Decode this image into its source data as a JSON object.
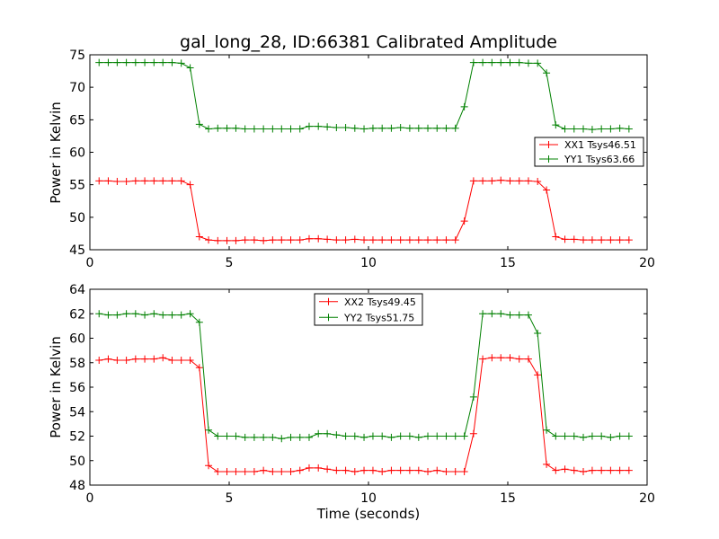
{
  "chart_data": [
    {
      "type": "line",
      "title": "gal_long_28, ID:66381 Calibrated Amplitude",
      "xlabel": "",
      "ylabel": "Power in Kelvin",
      "xlim": [
        0,
        20
      ],
      "ylim": [
        45,
        75
      ],
      "xticks": [
        "0",
        "5",
        "10",
        "15",
        "20"
      ],
      "yticks": [
        "45",
        "50",
        "55",
        "60",
        "65",
        "70",
        "75"
      ],
      "legend_position": "center-right",
      "grid": false,
      "x": [
        0.33,
        0.66,
        0.98,
        1.31,
        1.64,
        1.97,
        2.3,
        2.62,
        2.95,
        3.28,
        3.6,
        3.93,
        4.26,
        4.59,
        4.92,
        5.24,
        5.57,
        5.9,
        6.23,
        6.56,
        6.88,
        7.21,
        7.54,
        7.87,
        8.2,
        8.52,
        8.85,
        9.18,
        9.51,
        9.84,
        10.16,
        10.49,
        10.82,
        11.15,
        11.48,
        11.8,
        12.13,
        12.46,
        12.79,
        13.12,
        13.44,
        13.77,
        14.1,
        14.43,
        14.75,
        15.08,
        15.41,
        15.74,
        16.07,
        16.39,
        16.72,
        17.05,
        17.38,
        17.71,
        18.03,
        18.36,
        18.69,
        19.02,
        19.35
      ],
      "series": [
        {
          "name": "XX1 Tsys46.51",
          "color": "#ff0000",
          "values": [
            55.6,
            55.6,
            55.5,
            55.5,
            55.6,
            55.6,
            55.6,
            55.6,
            55.6,
            55.6,
            55.0,
            47.0,
            46.5,
            46.4,
            46.4,
            46.4,
            46.5,
            46.5,
            46.4,
            46.5,
            46.5,
            46.5,
            46.5,
            46.7,
            46.7,
            46.6,
            46.5,
            46.5,
            46.6,
            46.5,
            46.5,
            46.5,
            46.5,
            46.5,
            46.5,
            46.5,
            46.5,
            46.5,
            46.5,
            46.5,
            49.4,
            55.6,
            55.6,
            55.6,
            55.7,
            55.6,
            55.6,
            55.6,
            55.5,
            54.2,
            47.0,
            46.6,
            46.6,
            46.5,
            46.5,
            46.5,
            46.5,
            46.5,
            46.5
          ]
        },
        {
          "name": "YY1 Tsys63.66",
          "color": "#008000",
          "values": [
            73.8,
            73.8,
            73.8,
            73.8,
            73.8,
            73.8,
            73.8,
            73.8,
            73.8,
            73.7,
            73.0,
            64.3,
            63.6,
            63.7,
            63.7,
            63.7,
            63.6,
            63.6,
            63.6,
            63.6,
            63.6,
            63.6,
            63.6,
            64.0,
            64.0,
            63.9,
            63.8,
            63.8,
            63.7,
            63.6,
            63.7,
            63.7,
            63.7,
            63.8,
            63.7,
            63.7,
            63.7,
            63.7,
            63.7,
            63.7,
            67.0,
            73.8,
            73.8,
            73.8,
            73.8,
            73.8,
            73.8,
            73.7,
            73.7,
            72.2,
            64.2,
            63.6,
            63.6,
            63.6,
            63.5,
            63.6,
            63.6,
            63.7,
            63.6
          ]
        }
      ]
    },
    {
      "type": "line",
      "title": "",
      "xlabel": "Time (seconds)",
      "ylabel": "Power in Kelvin",
      "xlim": [
        0,
        20
      ],
      "ylim": [
        48,
        64
      ],
      "xticks": [
        "0",
        "5",
        "10",
        "15",
        "20"
      ],
      "yticks": [
        "48",
        "50",
        "52",
        "54",
        "56",
        "58",
        "60",
        "62",
        "64"
      ],
      "legend_position": "upper-center",
      "grid": false,
      "x": [
        0.33,
        0.66,
        0.98,
        1.31,
        1.64,
        1.97,
        2.3,
        2.62,
        2.95,
        3.28,
        3.6,
        3.93,
        4.26,
        4.59,
        4.92,
        5.24,
        5.57,
        5.9,
        6.23,
        6.56,
        6.88,
        7.21,
        7.54,
        7.87,
        8.2,
        8.52,
        8.85,
        9.18,
        9.51,
        9.84,
        10.16,
        10.49,
        10.82,
        11.15,
        11.48,
        11.8,
        12.13,
        12.46,
        12.79,
        13.12,
        13.44,
        13.77,
        14.1,
        14.43,
        14.75,
        15.08,
        15.41,
        15.74,
        16.07,
        16.39,
        16.72,
        17.05,
        17.38,
        17.71,
        18.03,
        18.36,
        18.69,
        19.02,
        19.35
      ],
      "series": [
        {
          "name": "XX2 Tsys49.45",
          "color": "#ff0000",
          "values": [
            58.2,
            58.3,
            58.2,
            58.2,
            58.3,
            58.3,
            58.3,
            58.4,
            58.2,
            58.2,
            58.2,
            57.6,
            49.6,
            49.1,
            49.1,
            49.1,
            49.1,
            49.1,
            49.2,
            49.1,
            49.1,
            49.1,
            49.2,
            49.4,
            49.4,
            49.3,
            49.2,
            49.2,
            49.1,
            49.2,
            49.2,
            49.1,
            49.2,
            49.2,
            49.2,
            49.2,
            49.1,
            49.2,
            49.1,
            49.1,
            49.1,
            52.2,
            58.3,
            58.4,
            58.4,
            58.4,
            58.3,
            58.3,
            57.0,
            49.7,
            49.2,
            49.3,
            49.2,
            49.1,
            49.2,
            49.2,
            49.2,
            49.2,
            49.2
          ]
        },
        {
          "name": "YY2 Tsys51.75",
          "color": "#008000",
          "values": [
            62.0,
            61.9,
            61.9,
            62.0,
            62.0,
            61.9,
            62.0,
            61.9,
            61.9,
            61.9,
            62.0,
            61.3,
            52.5,
            52.0,
            52.0,
            52.0,
            51.9,
            51.9,
            51.9,
            51.9,
            51.8,
            51.9,
            51.9,
            51.9,
            52.2,
            52.2,
            52.1,
            52.0,
            52.0,
            51.9,
            52.0,
            52.0,
            51.9,
            52.0,
            52.0,
            51.9,
            52.0,
            52.0,
            52.0,
            52.0,
            52.0,
            55.2,
            62.0,
            62.0,
            62.0,
            61.9,
            61.9,
            61.9,
            60.4,
            52.5,
            52.0,
            52.0,
            52.0,
            51.9,
            52.0,
            52.0,
            51.9,
            52.0,
            52.0
          ]
        }
      ]
    }
  ]
}
